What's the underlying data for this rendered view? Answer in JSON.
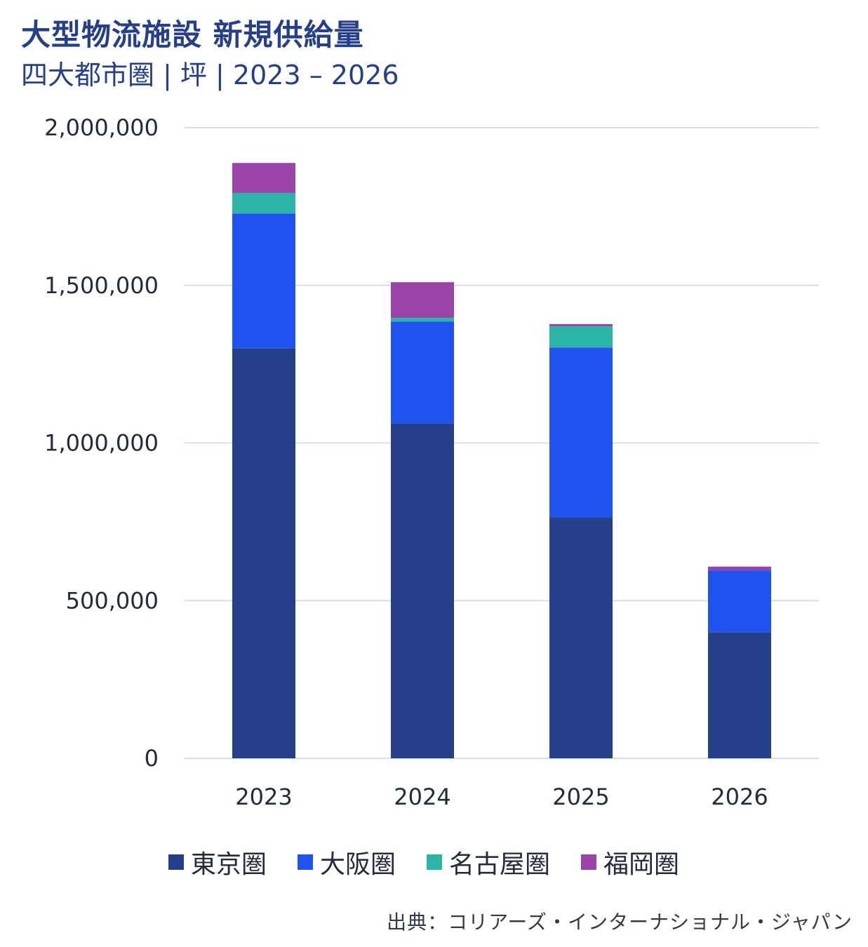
{
  "header": {
    "title": "大型物流施設 新規供給量",
    "subtitle": "四大都市圏 | 坪 | 2023 – 2026"
  },
  "source": "出典：コリアーズ・インターナショナル・ジャパン",
  "colors": {
    "tokyo": "#253f8a",
    "osaka": "#1f53f0",
    "nagoya": "#2bb5a6",
    "fukuoka": "#9a44a8",
    "grid": "#d9dde6",
    "text": "#222c3c"
  },
  "chart_data": {
    "type": "bar",
    "stacked": true,
    "categories": [
      "2023",
      "2024",
      "2025",
      "2026"
    ],
    "series": [
      {
        "name": "東京圏",
        "color": "#253f8a",
        "values": [
          1300000,
          1062000,
          763000,
          400000
        ]
      },
      {
        "name": "大阪圏",
        "color": "#1f53f0",
        "values": [
          428000,
          323000,
          540000,
          196000
        ]
      },
      {
        "name": "名古屋圏",
        "color": "#2bb5a6",
        "values": [
          65000,
          12000,
          67000,
          0
        ]
      },
      {
        "name": "福岡圏",
        "color": "#9a44a8",
        "values": [
          95000,
          113000,
          7000,
          12000
        ]
      }
    ],
    "y_ticks": [
      "0",
      "500,000",
      "1,000,000",
      "1,500,000",
      "2,000,000"
    ],
    "ylim": [
      0,
      2000000
    ],
    "grid": true,
    "legend": "bottom"
  }
}
